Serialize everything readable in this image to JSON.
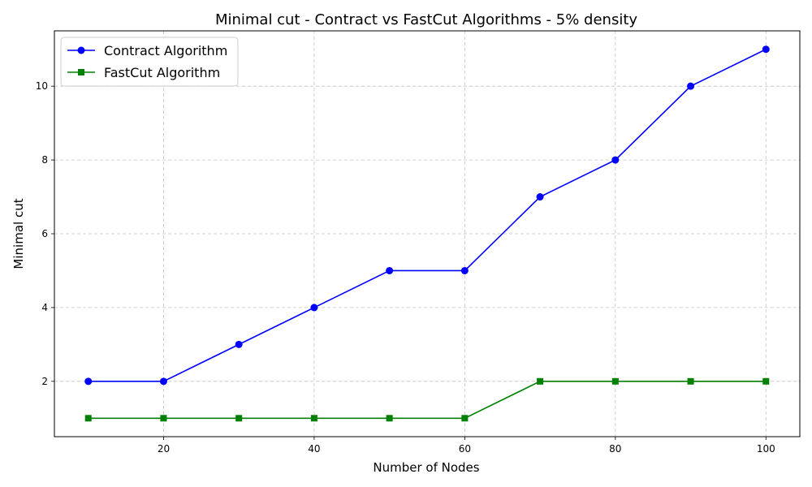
{
  "chart_data": {
    "type": "line",
    "title": "Minimal cut - Contract vs FastCut Algorithms - 5% density",
    "xlabel": "Number of Nodes",
    "ylabel": "Minimal cut",
    "x": [
      10,
      20,
      30,
      40,
      50,
      60,
      70,
      80,
      90,
      100
    ],
    "xlim": [
      5.5,
      104.5
    ],
    "ylim": [
      0.5,
      11.5
    ],
    "xticks": [
      20,
      40,
      60,
      80,
      100
    ],
    "yticks": [
      2,
      4,
      6,
      8,
      10
    ],
    "grid": true,
    "legend_position": "top-left",
    "series": [
      {
        "name": "Contract Algorithm",
        "color": "#0000ff",
        "marker": "circle",
        "values": [
          2,
          2,
          3,
          4,
          5,
          5,
          7,
          8,
          10,
          11
        ]
      },
      {
        "name": "FastCut Algorithm",
        "color": "#008000",
        "marker": "square",
        "values": [
          1,
          1,
          1,
          1,
          1,
          1,
          2,
          2,
          2,
          2
        ]
      }
    ]
  }
}
